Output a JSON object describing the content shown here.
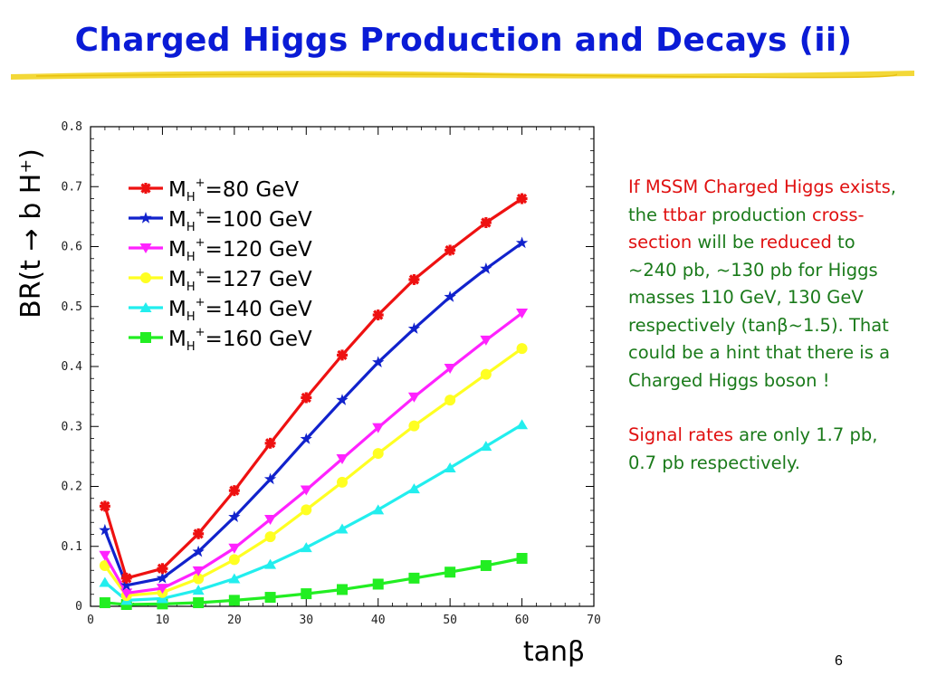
{
  "slide": {
    "title": "Charged Higgs Production and Decays (ii)",
    "page_number": "6",
    "paragraph1": [
      {
        "text": "If MSSM Charged Higgs exists",
        "color": "red"
      },
      {
        "text": ", the ",
        "color": "green"
      },
      {
        "text": "ttbar",
        "color": "red"
      },
      {
        "text": " production ",
        "color": "green"
      },
      {
        "text": "cross-section",
        "color": "red"
      },
      {
        "text": " will be ",
        "color": "green"
      },
      {
        "text": "reduced",
        "color": "red"
      },
      {
        "text": " to ~240 pb, ~130 pb for Higgs masses 110 GeV, 130 GeV respectively (tanβ~1.5). That could be a hint that there is a Charged Higgs boson !",
        "color": "green"
      }
    ],
    "paragraph2": [
      {
        "text": "Signal rates",
        "color": "red"
      },
      {
        "text": " are only 1.7 pb, 0.7 pb respectively.",
        "color": "green"
      }
    ],
    "colors": {
      "title": "#0a1bd6",
      "text_green": "#1a7a1a",
      "text_red": "#e01010",
      "underline": "#f0d020"
    }
  },
  "chart_data": {
    "type": "line",
    "xlabel": "tanβ",
    "ylabel": "BR(t → b H⁺)",
    "xlim": [
      0,
      70
    ],
    "ylim": [
      0,
      0.8
    ],
    "x_ticks": [
      "0",
      "10",
      "20",
      "30",
      "40",
      "50",
      "60",
      "70"
    ],
    "y_ticks": [
      "0",
      "0.1",
      "0.2",
      "0.3",
      "0.4",
      "0.5",
      "0.6",
      "0.7",
      "0.8"
    ],
    "legend_position": "top-left",
    "series": [
      {
        "name": "M_H⁺=80 GeV",
        "name_parts": [
          "M",
          "H",
          "+",
          "=80 GeV"
        ],
        "color": "#ee1111",
        "marker": "asterisk",
        "x": [
          2,
          5,
          10,
          15,
          20,
          25,
          30,
          35,
          40,
          45,
          50,
          55,
          60
        ],
        "y": [
          0.167,
          0.047,
          0.063,
          0.121,
          0.193,
          0.272,
          0.348,
          0.419,
          0.486,
          0.545,
          0.594,
          0.64,
          0.68
        ]
      },
      {
        "name": "M_H⁺=100 GeV",
        "name_parts": [
          "M",
          "H",
          "+",
          "=100 GeV"
        ],
        "color": "#1122cc",
        "marker": "star",
        "x": [
          2,
          5,
          10,
          15,
          20,
          25,
          30,
          35,
          40,
          45,
          50,
          55,
          60
        ],
        "y": [
          0.127,
          0.035,
          0.047,
          0.091,
          0.149,
          0.212,
          0.279,
          0.344,
          0.407,
          0.463,
          0.516,
          0.563,
          0.606
        ]
      },
      {
        "name": "M_H⁺=120 GeV",
        "name_parts": [
          "M",
          "H",
          "+",
          "=120 GeV"
        ],
        "color": "#ff22ff",
        "marker": "triangle-down",
        "x": [
          2,
          5,
          10,
          15,
          20,
          25,
          30,
          35,
          40,
          45,
          50,
          55,
          60
        ],
        "y": [
          0.085,
          0.022,
          0.03,
          0.059,
          0.097,
          0.145,
          0.194,
          0.246,
          0.298,
          0.349,
          0.397,
          0.444,
          0.489
        ]
      },
      {
        "name": "M_H⁺=127 GeV",
        "name_parts": [
          "M",
          "H",
          "+",
          "=127 GeV"
        ],
        "color": "#ffff22",
        "marker": "circle",
        "x": [
          2,
          5,
          10,
          15,
          20,
          25,
          30,
          35,
          40,
          45,
          50,
          55,
          60
        ],
        "y": [
          0.068,
          0.018,
          0.023,
          0.046,
          0.078,
          0.116,
          0.161,
          0.207,
          0.255,
          0.301,
          0.344,
          0.387,
          0.43
        ]
      },
      {
        "name": "M_H⁺=140 GeV",
        "name_parts": [
          "M",
          "H",
          "+",
          "=140 GeV"
        ],
        "color": "#22eeee",
        "marker": "triangle-up",
        "x": [
          2,
          5,
          10,
          15,
          20,
          25,
          30,
          35,
          40,
          45,
          50,
          55,
          60
        ],
        "y": [
          0.04,
          0.01,
          0.013,
          0.027,
          0.046,
          0.07,
          0.098,
          0.129,
          0.161,
          0.196,
          0.231,
          0.267,
          0.303
        ]
      },
      {
        "name": "M_H⁺=160 GeV",
        "name_parts": [
          "M",
          "H",
          "+",
          "=160 GeV"
        ],
        "color": "#22ee22",
        "marker": "square",
        "x": [
          2,
          5,
          10,
          15,
          20,
          25,
          30,
          35,
          40,
          45,
          50,
          55,
          60
        ],
        "y": [
          0.006,
          0.003,
          0.004,
          0.006,
          0.01,
          0.015,
          0.021,
          0.028,
          0.037,
          0.047,
          0.057,
          0.068,
          0.08
        ]
      }
    ]
  }
}
